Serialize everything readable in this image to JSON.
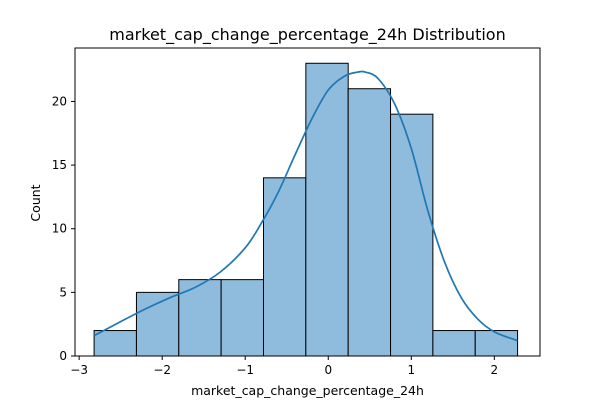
{
  "chart_data": {
    "type": "bar",
    "title": "market_cap_change_percentage_24h Distribution",
    "xlabel": "market_cap_change_percentage_24h",
    "ylabel": "Count",
    "xlim": [
      -3.05,
      2.55
    ],
    "ylim": [
      0,
      24.2
    ],
    "x_ticks": [
      -3,
      -2,
      -1,
      0,
      1,
      2
    ],
    "y_ticks": [
      0,
      5,
      10,
      15,
      20
    ],
    "bins": [
      {
        "start": -2.82,
        "end": -2.31,
        "count": 2
      },
      {
        "start": -2.31,
        "end": -1.8,
        "count": 5
      },
      {
        "start": -1.8,
        "end": -1.29,
        "count": 6
      },
      {
        "start": -1.29,
        "end": -0.78,
        "count": 6
      },
      {
        "start": -0.78,
        "end": -0.27,
        "count": 14
      },
      {
        "start": -0.27,
        "end": 0.24,
        "count": 23
      },
      {
        "start": 0.24,
        "end": 0.75,
        "count": 21
      },
      {
        "start": 0.75,
        "end": 1.26,
        "count": 19
      },
      {
        "start": 1.26,
        "end": 1.77,
        "count": 2
      },
      {
        "start": 1.77,
        "end": 2.28,
        "count": 2
      }
    ],
    "kde": {
      "x": [
        -2.82,
        -2.5,
        -2.2,
        -1.9,
        -1.6,
        -1.3,
        -1.0,
        -0.8,
        -0.6,
        -0.4,
        -0.2,
        0.0,
        0.2,
        0.35,
        0.45,
        0.6,
        0.8,
        1.0,
        1.2,
        1.4,
        1.6,
        1.8,
        2.0,
        2.28
      ],
      "y": [
        1.6,
        2.7,
        3.7,
        4.6,
        5.4,
        6.6,
        8.5,
        10.5,
        12.9,
        15.8,
        18.6,
        20.9,
        22.0,
        22.3,
        22.3,
        21.8,
        19.8,
        16.3,
        11.4,
        7.4,
        4.6,
        2.9,
        1.9,
        1.2
      ]
    },
    "grid": false,
    "legend": "none",
    "colors": {
      "bar_fill": "#8fbbdc",
      "bar_edge": "#000000",
      "kde_line": "#1f77b4"
    }
  }
}
